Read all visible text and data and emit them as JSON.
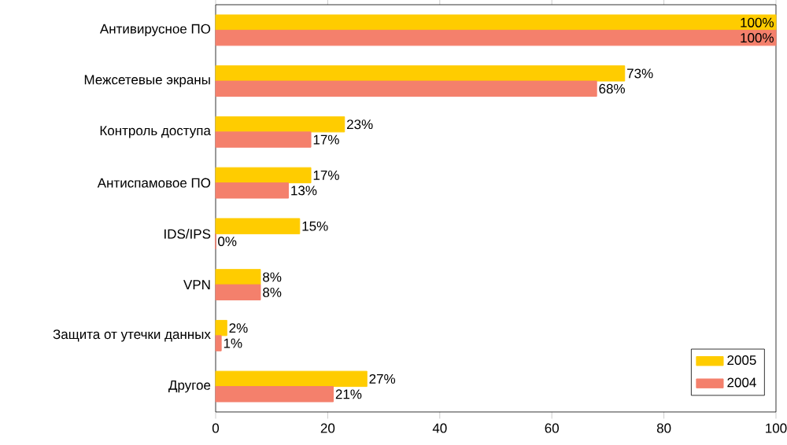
{
  "chart_data": {
    "type": "bar",
    "orientation": "horizontal",
    "categories": [
      "Антивирусное ПО",
      "Межсетевые экраны",
      "Контроль доступа",
      "Антиспамовое ПО",
      "IDS/IPS",
      "VPN",
      "Защита от утечки данных",
      "Другое"
    ],
    "series": [
      {
        "name": "2005",
        "color": "#ffcc00",
        "values": [
          100,
          73,
          23,
          17,
          15,
          8,
          2,
          27
        ],
        "value_labels": [
          "100%",
          "73%",
          "23%",
          "17%",
          "15%",
          "8%",
          "2%",
          "27%"
        ]
      },
      {
        "name": "2004",
        "color": "#f4806c",
        "values": [
          100,
          68,
          17,
          13,
          0,
          8,
          1,
          21
        ],
        "value_labels": [
          "100%",
          "68%",
          "17%",
          "13%",
          "0%",
          "8%",
          "1%",
          "21%"
        ]
      }
    ],
    "xlim": [
      0,
      100
    ],
    "xticks": [
      0,
      20,
      40,
      60,
      80,
      100
    ],
    "grid": false,
    "legend": "bottom right"
  }
}
